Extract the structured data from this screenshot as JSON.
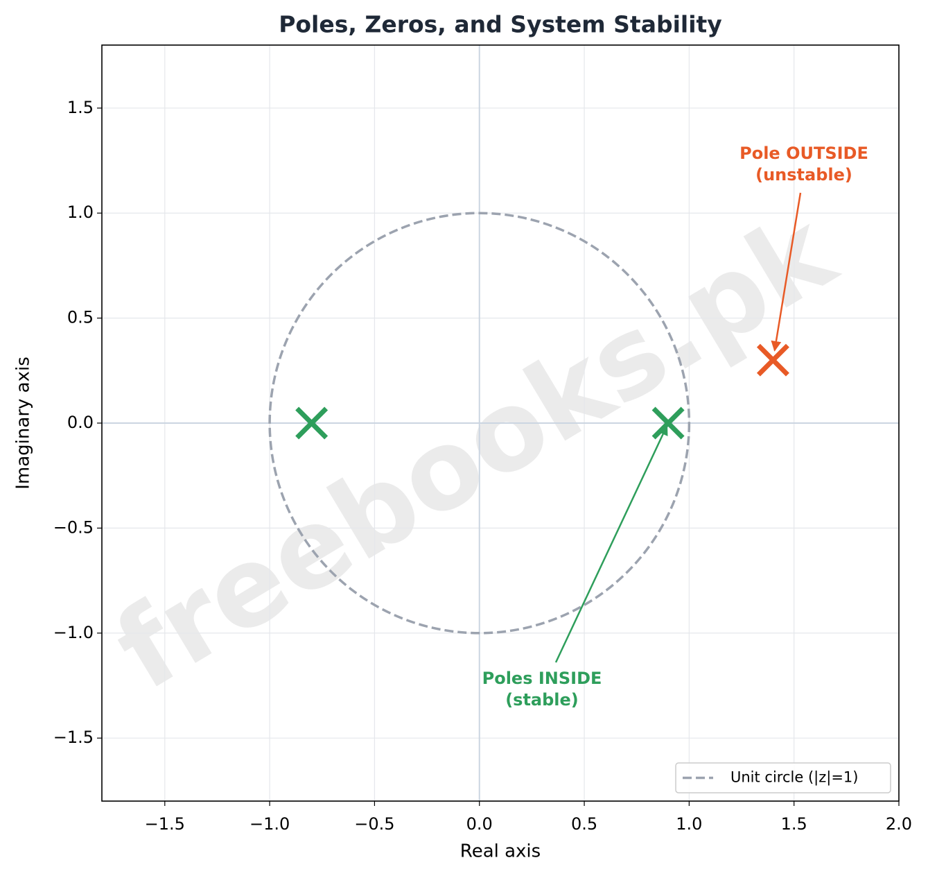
{
  "chart_data": {
    "type": "scatter",
    "title": "Poles, Zeros, and System Stability",
    "x_label": "Real axis",
    "y_label": "Imaginary axis",
    "xlim": [
      -1.8,
      2.0
    ],
    "ylim": [
      -1.8,
      1.8
    ],
    "xticks": [
      {
        "value": -1.5,
        "label": "−1.5"
      },
      {
        "value": -1,
        "label": "−1.0"
      },
      {
        "value": -0.5,
        "label": "−0.5"
      },
      {
        "value": 0,
        "label": "0.0"
      },
      0.5,
      {
        "value": 1,
        "label": "1.0"
      },
      1.5,
      {
        "value": 2,
        "label": "2.0"
      }
    ],
    "yticks": [
      {
        "value": -1.5,
        "label": "−1.5"
      },
      {
        "value": -1,
        "label": "−1.0"
      },
      {
        "value": -0.5,
        "label": "−0.5"
      },
      {
        "value": 0,
        "label": "0.0"
      },
      0.5,
      {
        "value": 1,
        "label": "1.0"
      },
      1.5
    ],
    "grid": true,
    "series": [
      {
        "color": "#2e9e5b",
        "x": [
          -0.8,
          0.9
        ],
        "values": [
          0,
          0
        ]
      },
      {
        "color": "#e85a26",
        "x": [
          1.4
        ],
        "values": [
          0.3
        ]
      }
    ],
    "unit_circle": {
      "name": "Unit circle (|z|=1)",
      "radius": 1,
      "color": "#9ca3af"
    },
    "legend_position": "lower right",
    "annotations": [
      {
        "text": [
          "Pole OUTSIDE",
          "(unstable)"
        ],
        "color": "#e85a26"
      },
      {
        "text": [
          "Poles INSIDE",
          "(stable)"
        ],
        "color": "#2e9e5b"
      }
    ],
    "watermark": "freebooks.pk"
  }
}
